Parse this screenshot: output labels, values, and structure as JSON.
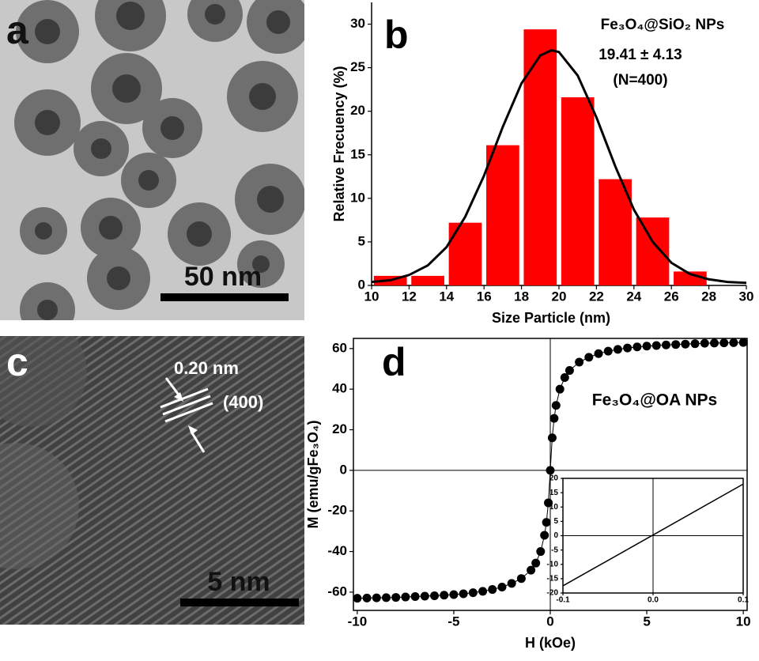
{
  "panels": {
    "a": {
      "label": "a",
      "scale_bar": "50 nm"
    },
    "b": {
      "label": "b"
    },
    "c": {
      "label": "c",
      "scale_bar": "5 nm",
      "spacing": "0.20 nm",
      "plane": "(400)"
    },
    "d": {
      "label": "d"
    }
  },
  "chart_data": [
    {
      "type": "histogram",
      "x_label": "Size Particle (nm)",
      "y_label": "Relative Frecuency (%)",
      "annotations": [
        "Fe₃O₄@SiO₂ NPs",
        "19.41 ± 4.13",
        "(N=400)"
      ],
      "bins": [
        10,
        12,
        14,
        16,
        18,
        20,
        22,
        24,
        26,
        28,
        30
      ],
      "values": [
        1.1,
        1.1,
        7.2,
        16.1,
        29.4,
        21.6,
        12.2,
        7.8,
        1.6,
        0
      ],
      "color": "#ff0000",
      "fit": {
        "color": "#000000",
        "x": [
          10,
          11,
          12,
          13,
          14,
          15,
          16,
          17,
          18,
          19,
          19.6,
          20,
          21,
          22,
          23,
          24,
          25,
          26,
          27,
          28,
          29,
          30
        ],
        "values": [
          0.4,
          0.6,
          1.2,
          2.3,
          4.4,
          7.9,
          12.6,
          18.2,
          23.2,
          26.4,
          27.0,
          26.8,
          24.1,
          19.3,
          13.7,
          8.7,
          5.0,
          2.6,
          1.3,
          0.7,
          0.4,
          0.3
        ]
      },
      "xlim": [
        10,
        30
      ],
      "xticks": [
        10,
        12,
        14,
        16,
        18,
        20,
        22,
        24,
        26,
        28,
        30
      ],
      "ylim": [
        0,
        32.5
      ],
      "yticks": [
        0,
        5,
        10,
        15,
        20,
        25,
        30
      ]
    },
    {
      "type": "scatter",
      "x_label": "H (kOe)",
      "y_label": "M (emu/gFe₃O₄)",
      "annotations": [
        "Fe₃O₄@OA NPs"
      ],
      "color": "#000000",
      "connect": true,
      "x": [
        -10,
        -9.5,
        -9,
        -8.5,
        -8,
        -7.5,
        -7,
        -6.5,
        -6,
        -5.5,
        -5,
        -4.5,
        -4,
        -3.5,
        -3,
        -2.5,
        -2,
        -1.5,
        -1,
        -0.75,
        -0.5,
        -0.3,
        -0.2,
        -0.1,
        0,
        0.1,
        0.2,
        0.3,
        0.5,
        0.75,
        1,
        1.5,
        2,
        2.5,
        3,
        3.5,
        4,
        4.5,
        5,
        5.5,
        6,
        6.5,
        7,
        7.5,
        8,
        8.5,
        9,
        9.5,
        10
      ],
      "values": [
        -63,
        -62.9,
        -62.8,
        -62.7,
        -62.6,
        -62.4,
        -62.2,
        -62,
        -61.8,
        -61.5,
        -61.2,
        -60.8,
        -60.3,
        -59.6,
        -58.7,
        -57.5,
        -55.7,
        -53.3,
        -49.2,
        -45.7,
        -40,
        -32,
        -25.6,
        -16,
        0,
        16,
        25.6,
        32,
        40,
        45.7,
        49.2,
        53.3,
        55.7,
        57.5,
        58.7,
        59.6,
        60.3,
        60.8,
        61.2,
        61.5,
        61.8,
        62,
        62.2,
        62.4,
        62.6,
        62.7,
        62.8,
        62.9,
        63
      ],
      "xlim": [
        -10.2,
        10.2
      ],
      "xticks": [
        -10,
        -5,
        0,
        5,
        10
      ],
      "ylim": [
        -69,
        65
      ],
      "yticks": [
        -60,
        -40,
        -20,
        0,
        20,
        40,
        60
      ]
    },
    {
      "type": "line",
      "color": "#000000",
      "x": [
        -0.1,
        0.1
      ],
      "values": [
        -17.5,
        18
      ],
      "xlim": [
        -0.1,
        0.1
      ],
      "xticks": [
        -0.1,
        {
          "value": 0,
          "label": "0.0"
        },
        0.1
      ],
      "ylim": [
        -20,
        20
      ],
      "yticks": [
        -20,
        -15,
        -10,
        -5,
        0,
        5,
        10,
        15,
        20
      ]
    }
  ]
}
